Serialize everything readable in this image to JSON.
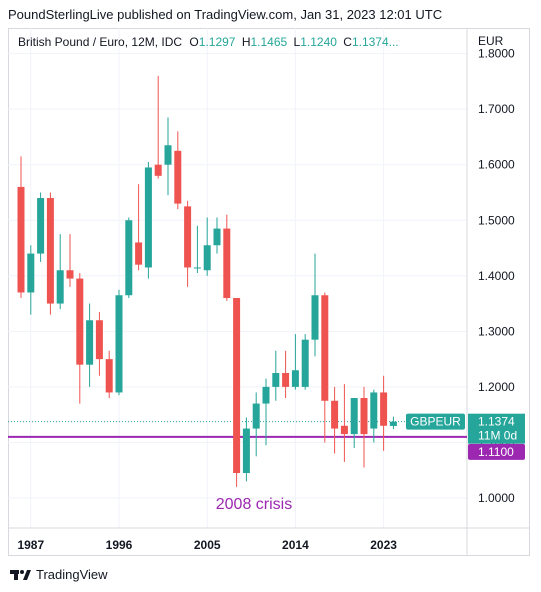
{
  "header": {
    "publisher": "PoundSterlingLive published on TradingView.com, Jan 31, 2023 12:01 UTC"
  },
  "legend": {
    "symbol": "British Pound / Euro, 12M, IDC",
    "open_key": "O",
    "open": "1.1297",
    "high_key": "H",
    "high": "1.1465",
    "low_key": "L",
    "low": "1.1240",
    "close_key": "C",
    "close": "1.1374..."
  },
  "currency": "EUR",
  "brand": {
    "name": "TradingView"
  },
  "colors": {
    "up": "#26a69a",
    "down": "#ef5350",
    "level": "#9c27b0",
    "grid": "#f0f3fa"
  },
  "chart_data": {
    "type": "candlestick",
    "title": "British Pound / Euro, 12M, IDC",
    "ylim": [
      0.95,
      1.8
    ],
    "ytick_labels": [
      "1.8000",
      "1.7000",
      "1.6000",
      "1.5000",
      "1.4000",
      "1.3000",
      "1.2000",
      "1.1000",
      "1.0000"
    ],
    "yticks": [
      1.8,
      1.7,
      1.6,
      1.5,
      1.4,
      1.3,
      1.2,
      1.1,
      1.0
    ],
    "xtick_labels": [
      "1987",
      "1996",
      "2005",
      "2014",
      "2023"
    ],
    "xticks": [
      1987,
      1996,
      2005,
      2014,
      2023
    ],
    "xlim": [
      1985.5,
      2031
    ],
    "candles": [
      {
        "year": 1986,
        "o": 1.56,
        "h": 1.615,
        "l": 1.36,
        "c": 1.37
      },
      {
        "year": 1987,
        "o": 1.37,
        "h": 1.455,
        "l": 1.33,
        "c": 1.44
      },
      {
        "year": 1988,
        "o": 1.44,
        "h": 1.55,
        "l": 1.425,
        "c": 1.54
      },
      {
        "year": 1989,
        "o": 1.54,
        "h": 1.55,
        "l": 1.33,
        "c": 1.35
      },
      {
        "year": 1990,
        "o": 1.35,
        "h": 1.475,
        "l": 1.34,
        "c": 1.41
      },
      {
        "year": 1991,
        "o": 1.41,
        "h": 1.475,
        "l": 1.38,
        "c": 1.395
      },
      {
        "year": 1992,
        "o": 1.395,
        "h": 1.405,
        "l": 1.17,
        "c": 1.24
      },
      {
        "year": 1993,
        "o": 1.24,
        "h": 1.35,
        "l": 1.2,
        "c": 1.32
      },
      {
        "year": 1994,
        "o": 1.32,
        "h": 1.335,
        "l": 1.22,
        "c": 1.25
      },
      {
        "year": 1995,
        "o": 1.25,
        "h": 1.265,
        "l": 1.18,
        "c": 1.19
      },
      {
        "year": 1996,
        "o": 1.19,
        "h": 1.375,
        "l": 1.185,
        "c": 1.365
      },
      {
        "year": 1997,
        "o": 1.365,
        "h": 1.505,
        "l": 1.36,
        "c": 1.5
      },
      {
        "year": 1998,
        "o": 1.46,
        "h": 1.565,
        "l": 1.41,
        "c": 1.42
      },
      {
        "year": 1999,
        "o": 1.415,
        "h": 1.605,
        "l": 1.395,
        "c": 1.595
      },
      {
        "year": 2000,
        "o": 1.6,
        "h": 1.76,
        "l": 1.575,
        "c": 1.58
      },
      {
        "year": 2001,
        "o": 1.6,
        "h": 1.685,
        "l": 1.545,
        "c": 1.635
      },
      {
        "year": 2002,
        "o": 1.625,
        "h": 1.66,
        "l": 1.52,
        "c": 1.53
      },
      {
        "year": 2003,
        "o": 1.525,
        "h": 1.535,
        "l": 1.38,
        "c": 1.415
      },
      {
        "year": 2004,
        "o": 1.415,
        "h": 1.49,
        "l": 1.405,
        "c": 1.415
      },
      {
        "year": 2005,
        "o": 1.41,
        "h": 1.505,
        "l": 1.4,
        "c": 1.455
      },
      {
        "year": 2006,
        "o": 1.455,
        "h": 1.505,
        "l": 1.44,
        "c": 1.485
      },
      {
        "year": 2007,
        "o": 1.485,
        "h": 1.51,
        "l": 1.355,
        "c": 1.36
      },
      {
        "year": 2008,
        "o": 1.36,
        "h": 1.36,
        "l": 1.02,
        "c": 1.045
      },
      {
        "year": 2009,
        "o": 1.045,
        "h": 1.145,
        "l": 1.03,
        "c": 1.125
      },
      {
        "year": 2010,
        "o": 1.125,
        "h": 1.19,
        "l": 1.075,
        "c": 1.17
      },
      {
        "year": 2011,
        "o": 1.17,
        "h": 1.215,
        "l": 1.095,
        "c": 1.2
      },
      {
        "year": 2012,
        "o": 1.2,
        "h": 1.265,
        "l": 1.175,
        "c": 1.225
      },
      {
        "year": 2013,
        "o": 1.225,
        "h": 1.265,
        "l": 1.18,
        "c": 1.2
      },
      {
        "year": 2014,
        "o": 1.2,
        "h": 1.295,
        "l": 1.195,
        "c": 1.23
      },
      {
        "year": 2015,
        "o": 1.2,
        "h": 1.295,
        "l": 1.195,
        "c": 1.285
      },
      {
        "year": 2016,
        "o": 1.285,
        "h": 1.44,
        "l": 1.255,
        "c": 1.365
      },
      {
        "year": 2017,
        "o": 1.365,
        "h": 1.37,
        "l": 1.1,
        "c": 1.175
      },
      {
        "year": 2018,
        "o": 1.175,
        "h": 1.2,
        "l": 1.08,
        "c": 1.125
      },
      {
        "year": 2019,
        "o": 1.13,
        "h": 1.205,
        "l": 1.065,
        "c": 1.115
      },
      {
        "year": 2020,
        "o": 1.115,
        "h": 1.18,
        "l": 1.09,
        "c": 1.18
      },
      {
        "year": 2021,
        "o": 1.18,
        "h": 1.2,
        "l": 1.055,
        "c": 1.115
      },
      {
        "year": 2022,
        "o": 1.125,
        "h": 1.195,
        "l": 1.1,
        "c": 1.19
      },
      {
        "year": 2023,
        "o": 1.19,
        "h": 1.22,
        "l": 1.085,
        "c": 1.13
      },
      {
        "year": 2024,
        "o": 1.1297,
        "h": 1.1465,
        "l": 1.124,
        "c": 1.1374
      }
    ],
    "last_price": {
      "value": 1.1374,
      "symbol_label": "GBPEUR",
      "price_label": "1.1374",
      "countdown": "11M 0d"
    },
    "level_line": {
      "value": 1.11,
      "label": "1.1100"
    },
    "annotation": {
      "text": "2008 crisis"
    }
  }
}
